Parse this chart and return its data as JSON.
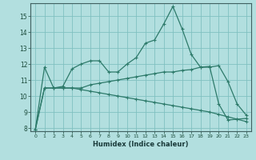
{
  "xlabel": "Humidex (Indice chaleur)",
  "background_color": "#b2dfdf",
  "grid_color": "#80c0c0",
  "line_color": "#2d7a6a",
  "xlim": [
    -0.5,
    23.5
  ],
  "ylim": [
    7.8,
    15.8
  ],
  "yticks": [
    8,
    9,
    10,
    11,
    12,
    13,
    14,
    15
  ],
  "xticks": [
    0,
    1,
    2,
    3,
    4,
    5,
    6,
    7,
    8,
    9,
    10,
    11,
    12,
    13,
    14,
    15,
    16,
    17,
    18,
    19,
    20,
    21,
    22,
    23
  ],
  "series": [
    [
      7.9,
      11.8,
      10.5,
      10.6,
      11.7,
      12.0,
      12.2,
      12.2,
      11.5,
      11.5,
      12.0,
      12.4,
      13.3,
      13.5,
      14.5,
      15.6,
      14.2,
      12.6,
      11.8,
      11.8,
      11.9,
      10.9,
      9.5,
      8.8
    ],
    [
      7.9,
      10.5,
      10.5,
      10.5,
      10.5,
      10.5,
      10.7,
      10.8,
      10.9,
      11.0,
      11.1,
      11.2,
      11.3,
      11.4,
      11.5,
      11.5,
      11.6,
      11.65,
      11.8,
      11.85,
      9.5,
      8.5,
      8.55,
      8.6
    ],
    [
      7.9,
      10.5,
      10.5,
      10.5,
      10.5,
      10.4,
      10.3,
      10.2,
      10.1,
      10.0,
      9.9,
      9.8,
      9.7,
      9.6,
      9.5,
      9.4,
      9.3,
      9.2,
      9.1,
      9.0,
      8.85,
      8.7,
      8.55,
      8.4
    ]
  ]
}
